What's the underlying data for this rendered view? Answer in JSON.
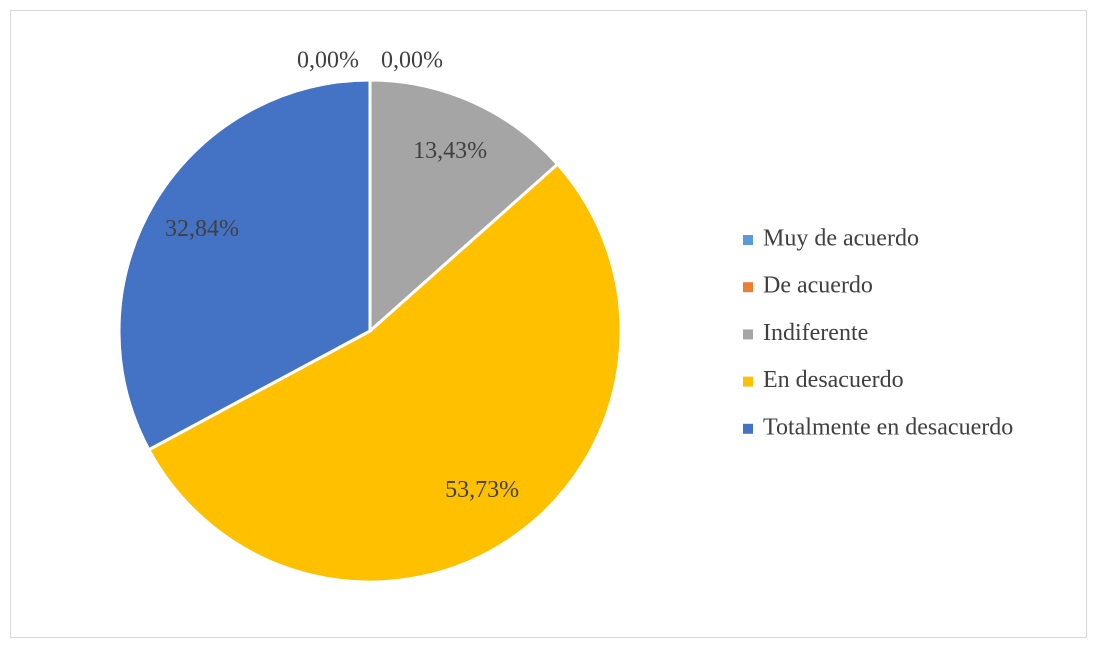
{
  "chart_data": {
    "type": "pie",
    "categories": [
      "Muy de acuerdo",
      "De acuerdo",
      "Indiferente",
      "En desacuerdo",
      "Totalmente en desacuerdo"
    ],
    "values": [
      0,
      0,
      13.43,
      53.73,
      32.84
    ],
    "value_labels": [
      "0,00%",
      "0,00%",
      "13,43%",
      "53,73%",
      "32,84%"
    ],
    "colors": [
      "#5b9bd5",
      "#ed7d31",
      "#a5a5a5",
      "#ffc000",
      "#4472c4"
    ],
    "legend": "right"
  }
}
